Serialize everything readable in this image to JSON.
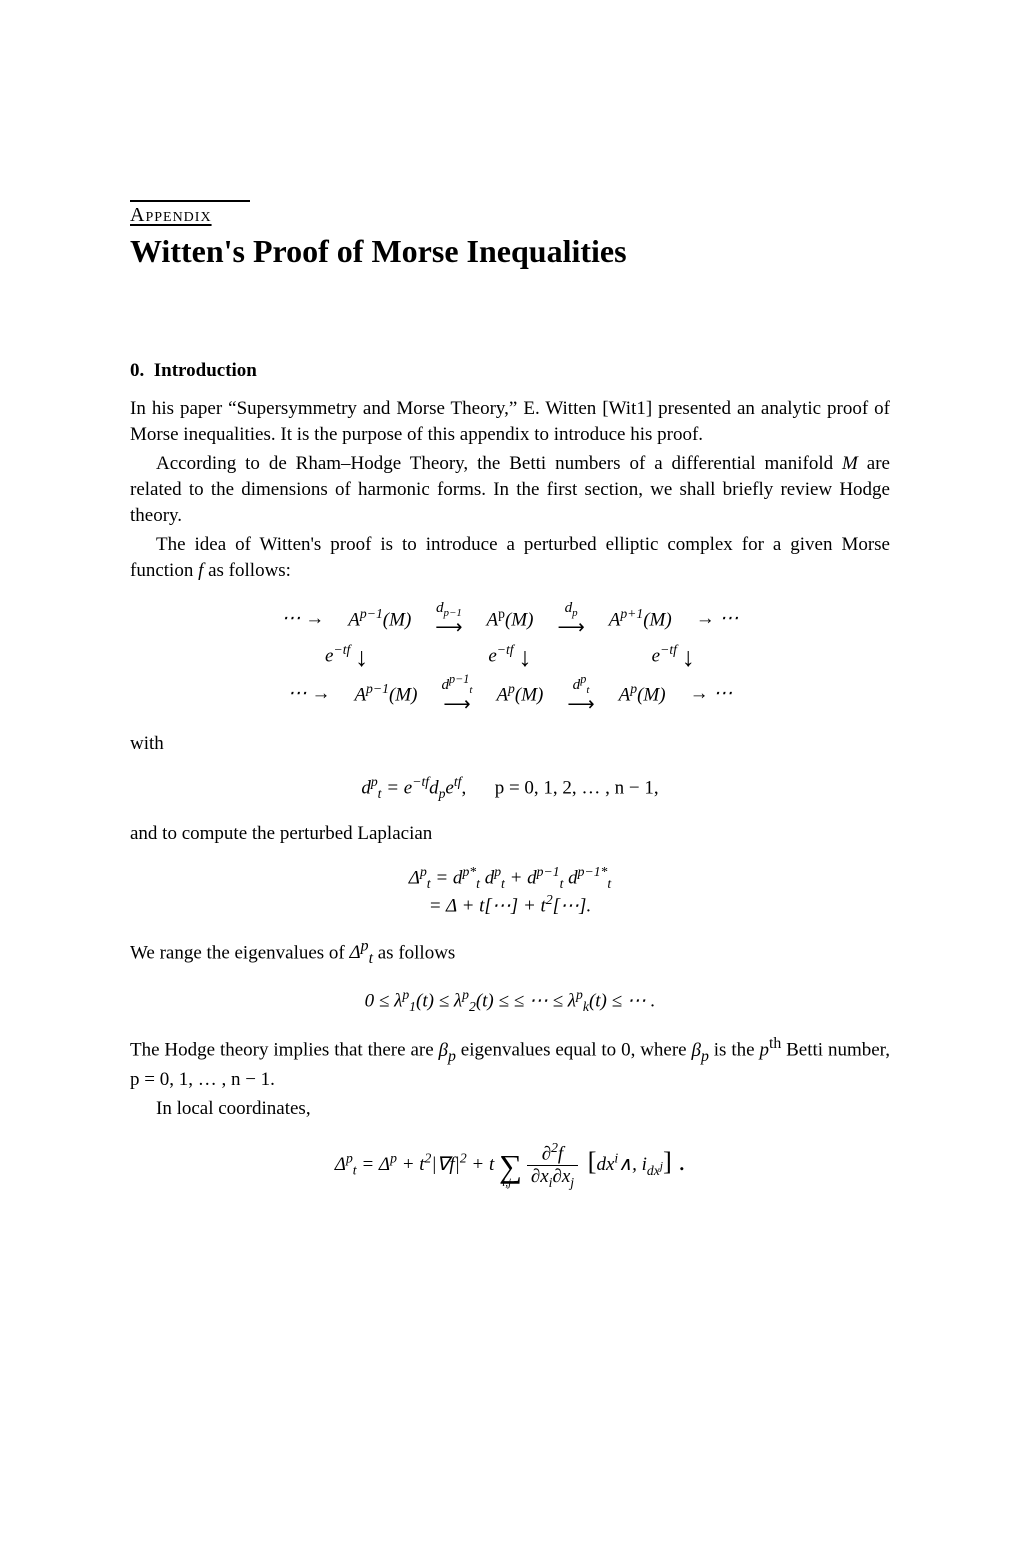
{
  "header": {
    "label": "Appendix",
    "title": "Witten's Proof of Morse Inequalities"
  },
  "section": {
    "number": "0.",
    "name": "Introduction"
  },
  "paragraphs": {
    "p1": "In his paper “Supersymmetry and Morse Theory,” E. Witten [Wit1] presented an analytic proof of Morse inequalities. It is the purpose of this appendix to introduce his proof.",
    "p2a": "According to de Rham–Hodge Theory, the Betti numbers of a differential manifold ",
    "p2b": " are related to the dimensions of harmonic forms. In the first section, we shall briefly review Hodge theory.",
    "p3a": "The idea of Witten's proof is to introduce a perturbed elliptic complex for a given Morse function ",
    "p3b": " as follows:",
    "with": "with",
    "p4": "and to compute the perturbed Laplacian",
    "p5a": "We range the eigenvalues of ",
    "p5b": " as follows",
    "p6a": "The Hodge theory implies that there are ",
    "p6b": " eigenvalues equal to 0, where ",
    "p6c": " is the ",
    "p6d": " Betti number, ",
    "p7": "In local coordinates,"
  },
  "math": {
    "M": "M",
    "f": "f",
    "diagram": {
      "r1c1": "⋯ →",
      "Apm1": "A",
      "pm1": "p−1",
      "Mparen": "(M)",
      "dlabel_pm1": "d",
      "Ap": "A",
      "p_sup": "p",
      "dlabel_p": "d",
      "Apl1": "A",
      "pl1": "p+1",
      "r1end": "→ ⋯",
      "etf": "e",
      "tfexp": "−tf",
      "dpsub_t": "t",
      "r3end": "→ ⋯"
    },
    "dt_def_a": "d",
    "dt_def_b": " = e",
    "dt_def_c": "d",
    "dt_def_d": "e",
    "tf": "tf",
    "rng": "p = 0, 1, 2, … , n − 1,",
    "lap": {
      "Delta": "Δ",
      "line1a": " = d",
      "star": "*",
      "plus": " + ",
      "line2": " = Δ + t[⋯] + t",
      "sq": "2",
      "line2b": "[⋯]."
    },
    "eig": "0 ≤ λ",
    "eig_1": "1",
    "eig_2": "2",
    "eig_k": "k",
    "eig_t": "(t) ≤ ",
    "eig_le": "≤ ⋯ ≤ ",
    "eig_end": "(t) ≤ ⋯ .",
    "beta": "β",
    "pth": "th",
    "rng2": "p = 0, 1, … , n − 1.",
    "local": {
      "pre": " = Δ",
      "mid": " + t",
      "grad": "|∇f|",
      "plus_t": " + t",
      "d2f": "∂",
      "fnum": "f",
      "dxi": "∂x",
      "sub_i": "i",
      "sub_j": "j",
      "br_open": "[",
      "dxi_wedge": "dx",
      "wedge": "∧, i",
      "dxj": "dx",
      "br_close": "] ."
    }
  }
}
